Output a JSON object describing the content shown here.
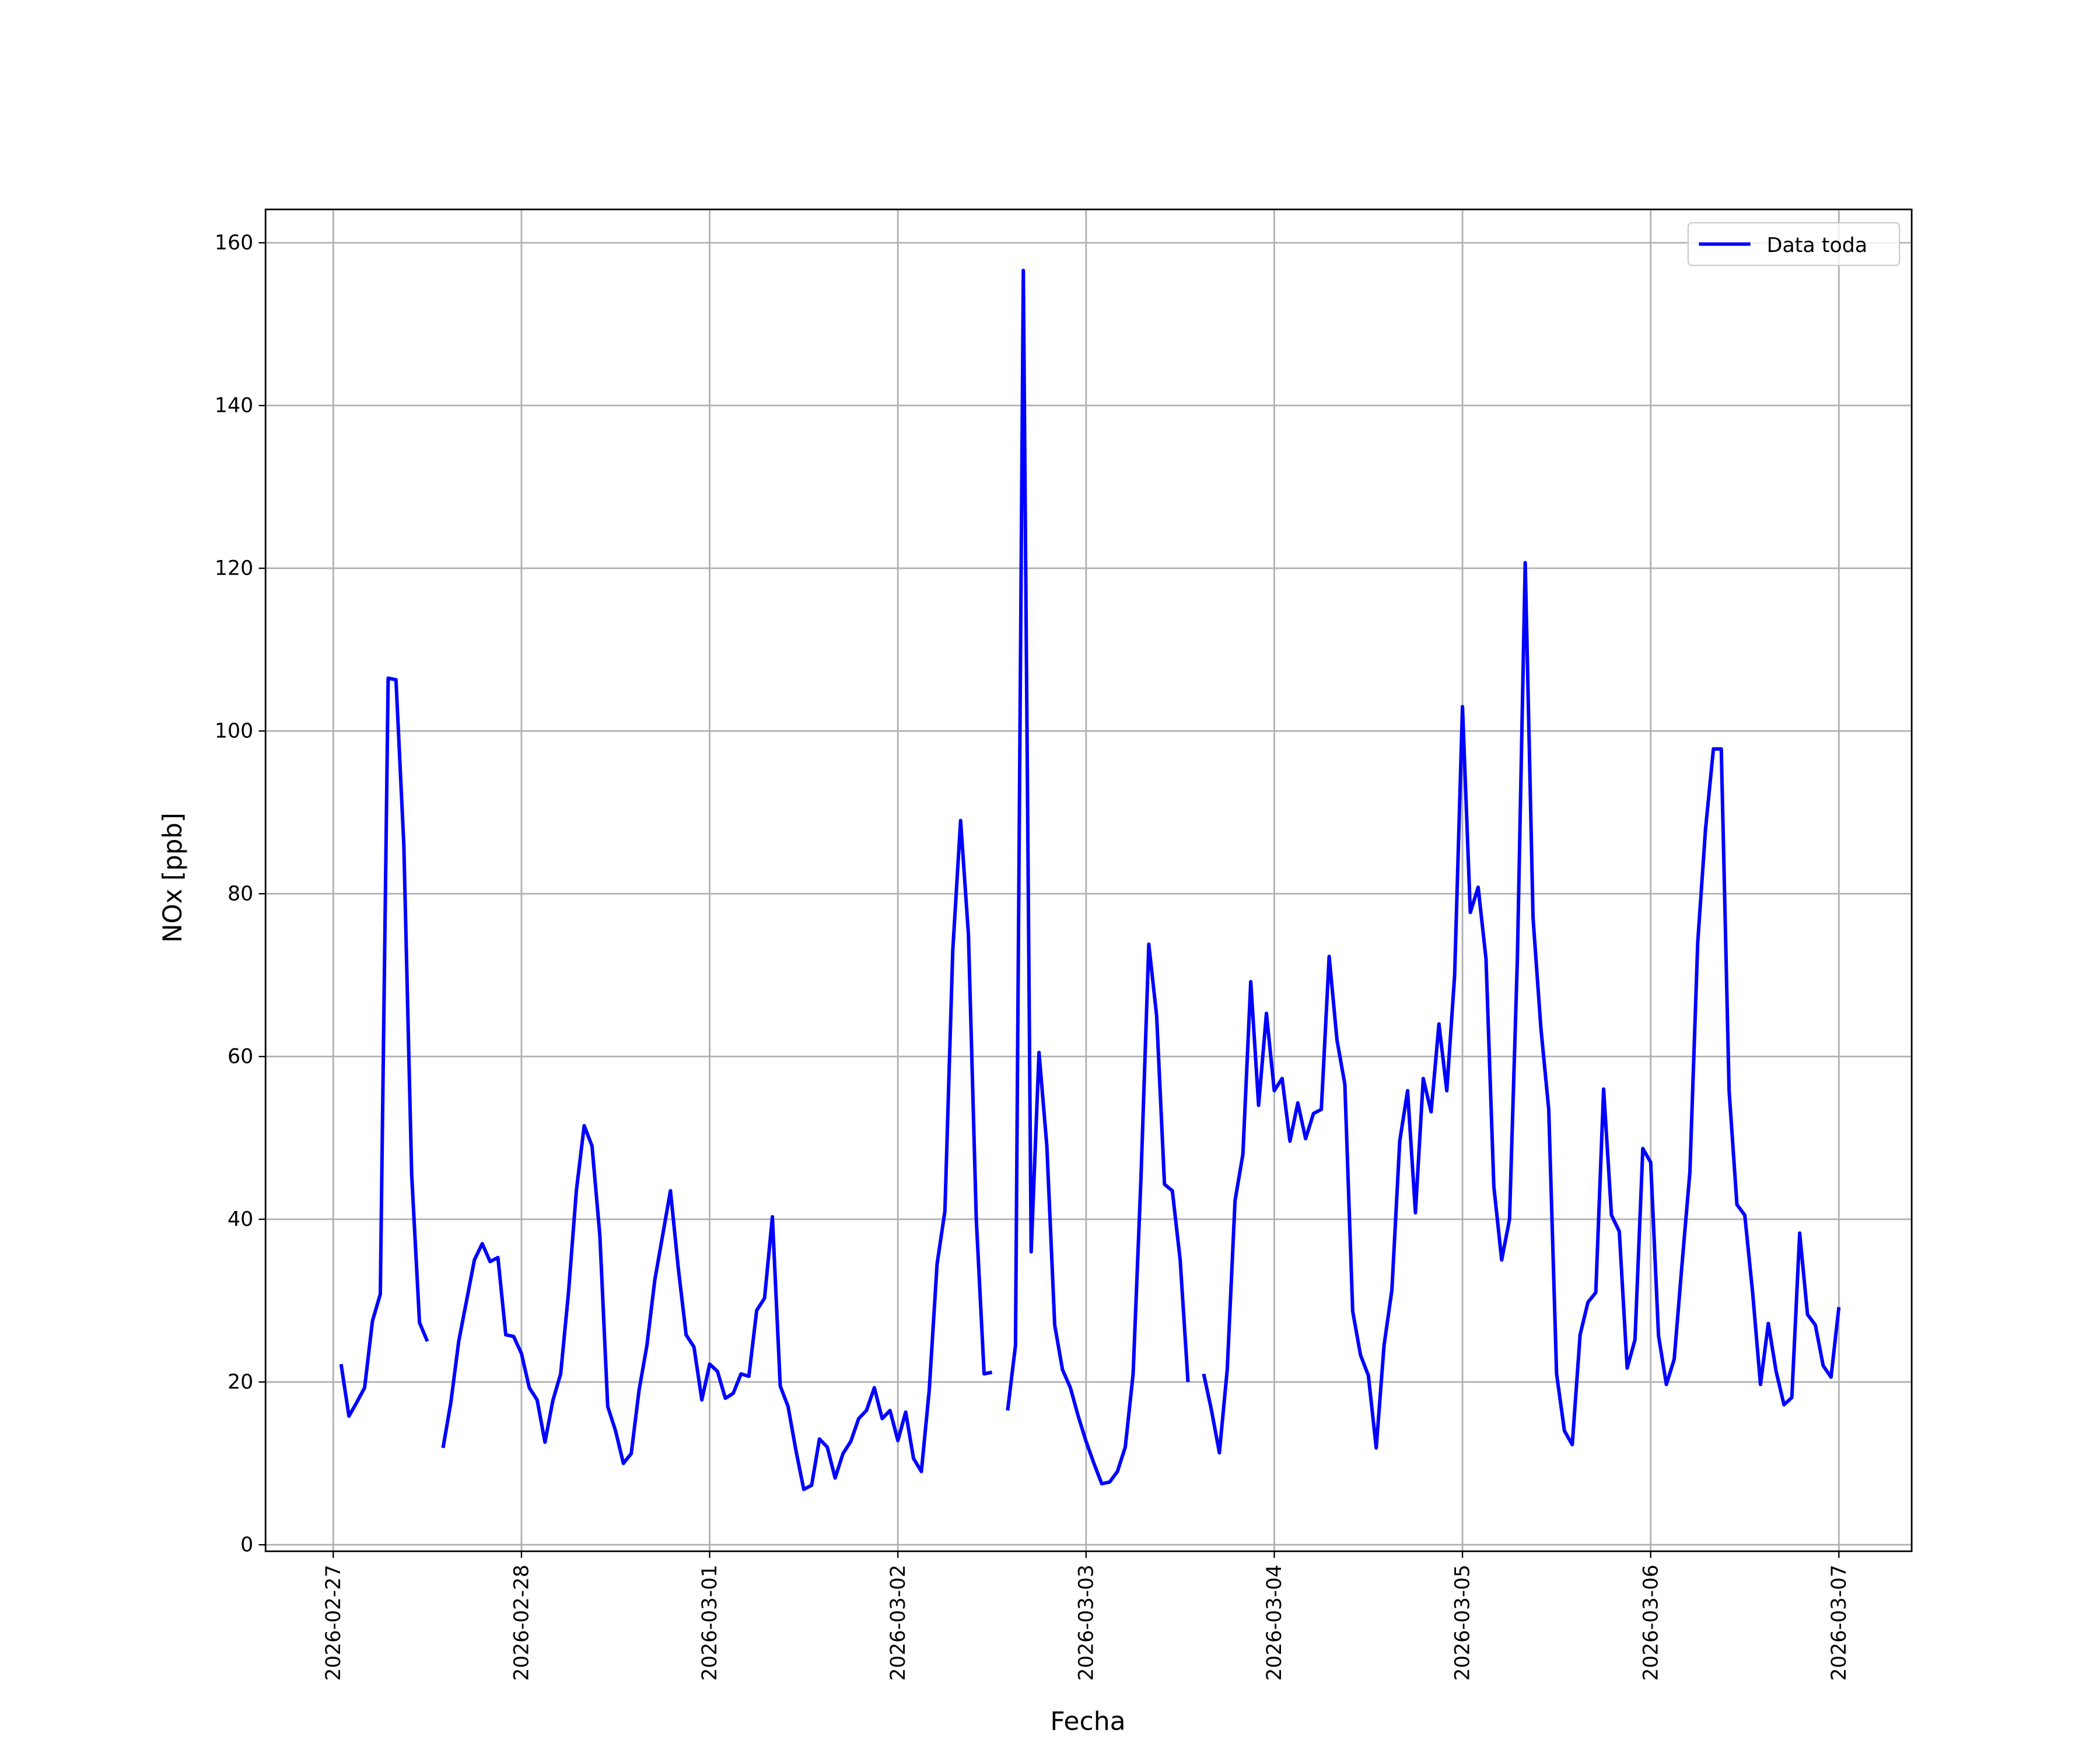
{
  "chart_data": {
    "type": "line",
    "x_label": "Fecha",
    "y_label": "NOx [ppb]",
    "x": [
      "2026-02-27 01:00",
      "2026-02-27 02:00",
      "2026-02-27 03:00",
      "2026-02-27 04:00",
      "2026-02-27 05:00",
      "2026-02-27 06:00",
      "2026-02-27 07:00",
      "2026-02-27 08:00",
      "2026-02-27 09:00",
      "2026-02-27 10:00",
      "2026-02-27 11:00",
      "2026-02-27 12:00",
      "2026-02-27 13:00",
      "2026-02-27 14:00",
      "2026-02-27 15:00",
      "2026-02-27 16:00",
      "2026-02-27 17:00",
      "2026-02-27 18:00",
      "2026-02-27 19:00",
      "2026-02-27 20:00",
      "2026-02-27 21:00",
      "2026-02-27 22:00",
      "2026-02-27 23:00",
      "2026-02-28 00:00",
      "2026-02-28 01:00",
      "2026-02-28 02:00",
      "2026-02-28 03:00",
      "2026-02-28 04:00",
      "2026-02-28 05:00",
      "2026-02-28 06:00",
      "2026-02-28 07:00",
      "2026-02-28 08:00",
      "2026-02-28 09:00",
      "2026-02-28 10:00",
      "2026-02-28 11:00",
      "2026-02-28 12:00",
      "2026-02-28 13:00",
      "2026-02-28 14:00",
      "2026-02-28 15:00",
      "2026-02-28 16:00",
      "2026-02-28 17:00",
      "2026-02-28 18:00",
      "2026-02-28 19:00",
      "2026-02-28 20:00",
      "2026-02-28 21:00",
      "2026-02-28 22:00",
      "2026-02-28 23:00",
      "2026-03-01 00:00",
      "2026-03-01 01:00",
      "2026-03-01 02:00",
      "2026-03-01 03:00",
      "2026-03-01 04:00",
      "2026-03-01 05:00",
      "2026-03-01 06:00",
      "2026-03-01 07:00",
      "2026-03-01 08:00",
      "2026-03-01 09:00",
      "2026-03-01 10:00",
      "2026-03-01 11:00",
      "2026-03-01 12:00",
      "2026-03-01 13:00",
      "2026-03-01 14:00",
      "2026-03-01 15:00",
      "2026-03-01 16:00",
      "2026-03-01 17:00",
      "2026-03-01 18:00",
      "2026-03-01 19:00",
      "2026-03-01 20:00",
      "2026-03-01 21:00",
      "2026-03-01 22:00",
      "2026-03-01 23:00",
      "2026-03-02 00:00",
      "2026-03-02 01:00",
      "2026-03-02 02:00",
      "2026-03-02 03:00",
      "2026-03-02 04:00",
      "2026-03-02 05:00",
      "2026-03-02 06:00",
      "2026-03-02 07:00",
      "2026-03-02 08:00",
      "2026-03-02 09:00",
      "2026-03-02 10:00",
      "2026-03-02 11:00",
      "2026-03-02 12:00",
      "2026-03-02 13:00",
      "2026-03-02 14:00",
      "2026-03-02 15:00",
      "2026-03-02 16:00",
      "2026-03-02 17:00",
      "2026-03-02 18:00",
      "2026-03-02 19:00",
      "2026-03-02 20:00",
      "2026-03-02 21:00",
      "2026-03-02 22:00",
      "2026-03-02 23:00",
      "2026-03-03 00:00",
      "2026-03-03 01:00",
      "2026-03-03 02:00",
      "2026-03-03 03:00",
      "2026-03-03 04:00",
      "2026-03-03 05:00",
      "2026-03-03 06:00",
      "2026-03-03 07:00",
      "2026-03-03 08:00",
      "2026-03-03 09:00",
      "2026-03-03 10:00",
      "2026-03-03 11:00",
      "2026-03-03 12:00",
      "2026-03-03 13:00",
      "2026-03-03 14:00",
      "2026-03-03 15:00",
      "2026-03-03 16:00",
      "2026-03-03 17:00",
      "2026-03-03 18:00",
      "2026-03-03 19:00",
      "2026-03-03 20:00",
      "2026-03-03 21:00",
      "2026-03-03 22:00",
      "2026-03-03 23:00",
      "2026-03-04 00:00",
      "2026-03-04 01:00",
      "2026-03-04 02:00",
      "2026-03-04 03:00",
      "2026-03-04 04:00",
      "2026-03-04 05:00",
      "2026-03-04 06:00",
      "2026-03-04 07:00",
      "2026-03-04 08:00",
      "2026-03-04 09:00",
      "2026-03-04 10:00",
      "2026-03-04 11:00",
      "2026-03-04 12:00",
      "2026-03-04 13:00",
      "2026-03-04 14:00",
      "2026-03-04 15:00",
      "2026-03-04 16:00",
      "2026-03-04 17:00",
      "2026-03-04 18:00",
      "2026-03-04 19:00",
      "2026-03-04 20:00",
      "2026-03-04 21:00",
      "2026-03-04 22:00",
      "2026-03-04 23:00",
      "2026-03-05 00:00",
      "2026-03-05 01:00",
      "2026-03-05 02:00",
      "2026-03-05 03:00",
      "2026-03-05 04:00",
      "2026-03-05 05:00",
      "2026-03-05 06:00",
      "2026-03-05 07:00",
      "2026-03-05 08:00",
      "2026-03-05 09:00",
      "2026-03-05 10:00",
      "2026-03-05 11:00",
      "2026-03-05 12:00",
      "2026-03-05 13:00",
      "2026-03-05 14:00",
      "2026-03-05 15:00",
      "2026-03-05 16:00",
      "2026-03-05 17:00",
      "2026-03-05 18:00",
      "2026-03-05 19:00",
      "2026-03-05 20:00",
      "2026-03-05 21:00",
      "2026-03-05 22:00",
      "2026-03-05 23:00",
      "2026-03-06 00:00",
      "2026-03-06 01:00",
      "2026-03-06 02:00",
      "2026-03-06 03:00",
      "2026-03-06 04:00",
      "2026-03-06 05:00",
      "2026-03-06 06:00",
      "2026-03-06 07:00",
      "2026-03-06 08:00",
      "2026-03-06 09:00",
      "2026-03-06 10:00",
      "2026-03-06 11:00",
      "2026-03-06 12:00",
      "2026-03-06 13:00",
      "2026-03-06 14:00",
      "2026-03-06 15:00",
      "2026-03-06 16:00",
      "2026-03-06 17:00",
      "2026-03-06 18:00",
      "2026-03-06 19:00",
      "2026-03-06 20:00",
      "2026-03-06 21:00",
      "2026-03-06 22:00",
      "2026-03-06 23:00",
      "2026-03-07 00:00"
    ],
    "series": [
      {
        "name": "Data toda",
        "color": "#0000ff",
        "values": [
          22.2,
          15.8,
          17.5,
          19.3,
          27.5,
          30.8,
          106.5,
          106.3,
          86,
          45.5,
          27.3,
          25,
          null,
          11.9,
          17.5,
          25,
          30,
          35,
          37,
          34.8,
          35.3,
          25.8,
          25.6,
          23.5,
          19.3,
          17.8,
          12.6,
          17.7,
          21,
          31,
          43.5,
          51.5,
          49,
          38,
          17,
          14,
          10,
          11.2,
          19,
          24.5,
          32.5,
          38,
          43.5,
          34,
          25.8,
          24.3,
          17.8,
          22.2,
          21.3,
          18,
          18.6,
          21,
          20.7,
          28.8,
          30.3,
          40.3,
          19.5,
          17,
          11.6,
          6.8,
          7.3,
          13,
          12,
          8.2,
          11.2,
          12.7,
          15.5,
          16.5,
          19.3,
          15.5,
          16.5,
          12.8,
          16.3,
          10.6,
          9,
          19,
          34.5,
          41,
          73,
          89,
          75,
          40,
          21,
          21.2,
          null,
          16.5,
          24.5,
          156.6,
          36,
          60.5,
          49,
          27,
          21.5,
          19.3,
          15.8,
          12.7,
          10,
          7.5,
          7.7,
          9,
          12,
          21,
          45,
          73.8,
          65,
          44.3,
          43.5,
          35,
          20,
          null,
          21,
          16.5,
          11.3,
          21.5,
          42.3,
          48,
          69.2,
          54,
          65.3,
          55.8,
          57.3,
          49.6,
          54.3,
          49.9,
          53,
          53.5,
          72.3,
          62,
          56.6,
          28.7,
          23.3,
          20.8,
          11.9,
          24.5,
          31.3,
          49.6,
          55.8,
          40.8,
          57.3,
          53.2,
          64,
          55.8,
          70,
          103,
          77.7,
          80.8,
          72,
          44,
          35,
          40,
          72,
          120.7,
          77,
          63.5,
          53.5,
          21,
          14,
          12.3,
          25.8,
          29.8,
          31,
          56,
          40.5,
          38.5,
          21.7,
          25.2,
          48.7,
          47,
          25.7,
          19.7,
          22.8,
          34.5,
          45.8,
          74,
          88,
          97.8,
          97.8,
          55.8,
          41.8,
          40.5,
          31,
          19.7,
          27.2,
          21.3,
          17.2,
          18.1,
          38.3,
          28.3,
          27,
          22,
          20.6,
          29.2
        ]
      }
    ],
    "xlim": [
      "2026-02-26 15:22",
      "2026-03-07 09:17"
    ],
    "xticks": [
      "2026-02-27",
      "2026-02-28",
      "2026-03-01",
      "2026-03-02",
      "2026-03-03",
      "2026-03-04",
      "2026-03-05",
      "2026-03-06",
      "2026-03-07"
    ],
    "ylim": [
      -0.8,
      164.1
    ],
    "yticks": [
      0,
      20,
      40,
      60,
      80,
      100,
      120,
      140,
      160
    ],
    "grid": true,
    "legend": "upper right"
  }
}
